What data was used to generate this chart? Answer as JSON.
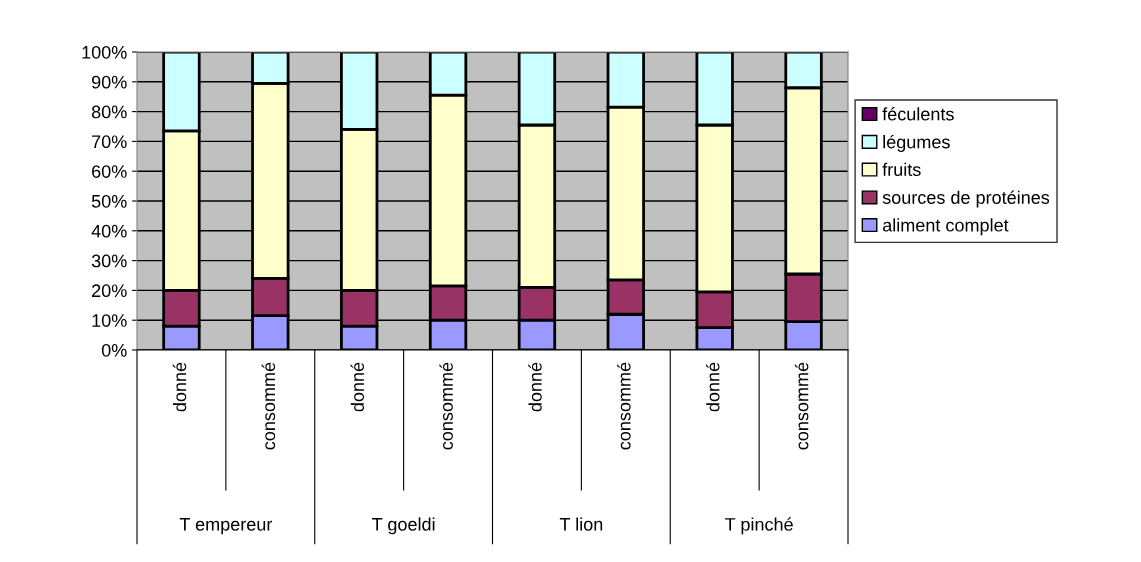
{
  "chart_data": {
    "type": "bar",
    "stacked": true,
    "categories": [
      "donné",
      "consommé",
      "donné",
      "consommé",
      "donné",
      "consommé",
      "donné",
      "consommé"
    ],
    "annotations": [
      "T empereur",
      "T goeldi",
      "T lion",
      "T pinché"
    ],
    "series": [
      {
        "name": "aliment complet",
        "color": "#9999ff",
        "values": [
          8,
          11.5,
          8,
          10,
          10,
          12,
          7.5,
          9.5
        ]
      },
      {
        "name": "sources de protéines",
        "color": "#993366",
        "values": [
          12,
          12.5,
          12,
          11.5,
          11,
          11.5,
          12,
          16
        ]
      },
      {
        "name": "fruits",
        "color": "#ffffcc",
        "values": [
          53.5,
          65.5,
          54,
          64,
          54.5,
          58,
          56,
          62.5
        ]
      },
      {
        "name": "légumes",
        "color": "#ccffff",
        "values": [
          26.5,
          10.5,
          26,
          14.5,
          24.5,
          18.5,
          24.5,
          12
        ]
      },
      {
        "name": "féculents",
        "color": "#660066",
        "values": [
          null,
          null,
          null,
          null,
          null,
          null,
          null,
          null
        ]
      }
    ],
    "ylim": [
      0,
      100
    ],
    "yticks": [
      {
        "value": 0,
        "label": "0%"
      },
      {
        "value": 10,
        "label": "10%"
      },
      {
        "value": 20,
        "label": "20%"
      },
      {
        "value": 30,
        "label": "30%"
      },
      {
        "value": 40,
        "label": "40%"
      },
      {
        "value": 50,
        "label": "50%"
      },
      {
        "value": 60,
        "label": "60%"
      },
      {
        "value": 70,
        "label": "70%"
      },
      {
        "value": 80,
        "label": "80%"
      },
      {
        "value": 90,
        "label": "90%"
      },
      {
        "value": 100,
        "label": "100%"
      }
    ],
    "grid": "y",
    "legend": "right"
  }
}
